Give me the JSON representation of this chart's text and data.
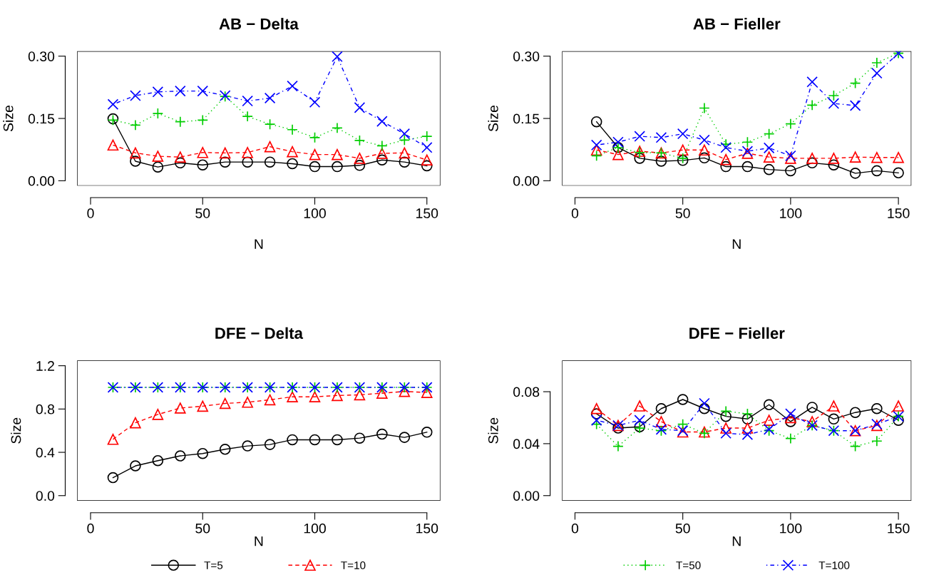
{
  "chart_data": [
    {
      "type": "line",
      "title": "AB − Delta",
      "xlabel": "N",
      "ylabel": "Size",
      "x": [
        10,
        20,
        30,
        40,
        50,
        60,
        70,
        80,
        90,
        100,
        110,
        120,
        130,
        140,
        150
      ],
      "xlim": [
        -6,
        156
      ],
      "xticks": [
        0,
        50,
        100,
        150
      ],
      "ylim": [
        -0.012,
        0.312
      ],
      "yticks": [
        {
          "value": 0,
          "label": "0.00"
        },
        {
          "value": 0.15,
          "label": "0.15"
        },
        {
          "value": 0.3,
          "label": "0.30"
        }
      ],
      "grid": false,
      "legend": false,
      "series": [
        {
          "color": "#000000",
          "marker": "circle",
          "line_style": "solid",
          "values": [
            0.149,
            0.047,
            0.033,
            0.043,
            0.038,
            0.045,
            0.045,
            0.045,
            0.041,
            0.034,
            0.034,
            0.037,
            0.05,
            0.045,
            0.036
          ]
        },
        {
          "color": "#ff0000",
          "marker": "triangle",
          "line_style": "dashed",
          "values": [
            0.086,
            0.067,
            0.059,
            0.057,
            0.068,
            0.067,
            0.068,
            0.082,
            0.07,
            0.063,
            0.063,
            0.054,
            0.066,
            0.067,
            0.05
          ]
        },
        {
          "color": "#00cd00",
          "marker": "plus",
          "line_style": "dotted",
          "values": [
            0.146,
            0.134,
            0.162,
            0.142,
            0.146,
            0.203,
            0.155,
            0.136,
            0.123,
            0.104,
            0.127,
            0.097,
            0.084,
            0.098,
            0.107
          ]
        },
        {
          "color": "#0000ff",
          "marker": "cross",
          "line_style": "dashdot",
          "values": [
            0.184,
            0.205,
            0.214,
            0.216,
            0.216,
            0.205,
            0.192,
            0.199,
            0.228,
            0.189,
            0.299,
            0.176,
            0.143,
            0.113,
            0.08
          ]
        }
      ]
    },
    {
      "type": "line",
      "title": "AB − Fieller",
      "xlabel": "N",
      "ylabel": "Size",
      "x": [
        10,
        20,
        30,
        40,
        50,
        60,
        70,
        80,
        90,
        100,
        110,
        120,
        130,
        140,
        150
      ],
      "xlim": [
        -6,
        156
      ],
      "xticks": [
        0,
        50,
        100,
        150
      ],
      "ylim": [
        -0.012,
        0.312
      ],
      "yticks": [
        {
          "value": 0,
          "label": "0.00"
        },
        {
          "value": 0.15,
          "label": "0.15"
        },
        {
          "value": 0.3,
          "label": "0.30"
        }
      ],
      "grid": false,
      "legend": false,
      "series": [
        {
          "color": "#000000",
          "marker": "circle",
          "line_style": "solid",
          "values": [
            0.142,
            0.08,
            0.054,
            0.047,
            0.049,
            0.055,
            0.034,
            0.034,
            0.027,
            0.024,
            0.043,
            0.038,
            0.018,
            0.024,
            0.019
          ]
        },
        {
          "color": "#ff0000",
          "marker": "triangle",
          "line_style": "dashed",
          "values": [
            0.074,
            0.063,
            0.071,
            0.067,
            0.074,
            0.074,
            0.051,
            0.066,
            0.057,
            0.054,
            0.054,
            0.054,
            0.057,
            0.056,
            0.056
          ]
        },
        {
          "color": "#00cd00",
          "marker": "plus",
          "line_style": "dotted",
          "values": [
            0.06,
            0.08,
            0.068,
            0.067,
            0.054,
            0.175,
            0.088,
            0.093,
            0.113,
            0.137,
            0.182,
            0.205,
            0.235,
            0.284,
            0.307
          ]
        },
        {
          "color": "#0000ff",
          "marker": "cross",
          "line_style": "dashdot",
          "values": [
            0.086,
            0.093,
            0.107,
            0.104,
            0.113,
            0.098,
            0.08,
            0.071,
            0.079,
            0.06,
            0.238,
            0.186,
            0.181,
            0.259,
            0.307
          ]
        }
      ]
    },
    {
      "type": "line",
      "title": "DFE − Delta",
      "xlabel": "N",
      "ylabel": "Size",
      "x": [
        10,
        20,
        30,
        40,
        50,
        60,
        70,
        80,
        90,
        100,
        110,
        120,
        130,
        140,
        150
      ],
      "xlim": [
        -6,
        156
      ],
      "xticks": [
        0,
        50,
        100,
        150
      ],
      "ylim": [
        -0.048,
        1.248
      ],
      "yticks": [
        {
          "value": 0,
          "label": "0.0"
        },
        {
          "value": 0.4,
          "label": "0.4"
        },
        {
          "value": 0.8,
          "label": "0.8"
        },
        {
          "value": 1.2,
          "label": "1.2"
        }
      ],
      "grid": false,
      "legend": "bottom",
      "series": [
        {
          "name": "T=5",
          "color": "#000000",
          "marker": "circle",
          "line_style": "solid",
          "values": [
            0.166,
            0.275,
            0.323,
            0.367,
            0.389,
            0.428,
            0.459,
            0.472,
            0.516,
            0.516,
            0.516,
            0.531,
            0.568,
            0.538,
            0.586
          ]
        },
        {
          "name": "T=10",
          "color": "#ff0000",
          "marker": "triangle",
          "line_style": "dashed",
          "values": [
            0.52,
            0.673,
            0.75,
            0.809,
            0.826,
            0.852,
            0.863,
            0.885,
            0.913,
            0.913,
            0.925,
            0.931,
            0.946,
            0.962,
            0.953
          ]
        },
        {
          "color": "#00cd00",
          "marker": "plus",
          "line_style": "dotted",
          "values": [
            1,
            1,
            1,
            1,
            1,
            1,
            1,
            1,
            1,
            1,
            1,
            1,
            1,
            1,
            1
          ]
        },
        {
          "color": "#0000ff",
          "marker": "cross",
          "line_style": "dashdot",
          "values": [
            1,
            1,
            1,
            1,
            1,
            1,
            1,
            1,
            1,
            1,
            1,
            1,
            1,
            1,
            1
          ]
        }
      ]
    },
    {
      "type": "line",
      "title": "DFE − Fieller",
      "xlabel": "N",
      "ylabel": "Size",
      "x": [
        10,
        20,
        30,
        40,
        50,
        60,
        70,
        80,
        90,
        100,
        110,
        120,
        130,
        140,
        150
      ],
      "xlim": [
        -6,
        156
      ],
      "xticks": [
        0,
        50,
        100,
        150
      ],
      "ylim": [
        -0.004,
        0.104
      ],
      "yticks": [
        {
          "value": 0,
          "label": "0.00"
        },
        {
          "value": 0.04,
          "label": "0.04"
        },
        {
          "value": 0.08,
          "label": "0.08"
        }
      ],
      "grid": false,
      "legend": "bottom",
      "series": [
        {
          "color": "#000000",
          "marker": "circle",
          "line_style": "solid",
          "values": [
            0.063,
            0.052,
            0.053,
            0.067,
            0.074,
            0.067,
            0.061,
            0.059,
            0.07,
            0.057,
            0.068,
            0.059,
            0.064,
            0.067,
            0.058
          ]
        },
        {
          "color": "#ff0000",
          "marker": "triangle",
          "line_style": "dashed",
          "values": [
            0.067,
            0.054,
            0.069,
            0.057,
            0.049,
            0.049,
            0.052,
            0.052,
            0.058,
            0.06,
            0.057,
            0.069,
            0.05,
            0.054,
            0.069
          ]
        },
        {
          "name": "T=50",
          "color": "#00cd00",
          "marker": "plus",
          "line_style": "dotted",
          "values": [
            0.055,
            0.038,
            0.052,
            0.05,
            0.055,
            0.048,
            0.065,
            0.063,
            0.05,
            0.044,
            0.054,
            0.05,
            0.038,
            0.042,
            0.061
          ]
        },
        {
          "name": "T=100",
          "color": "#0000ff",
          "marker": "cross",
          "line_style": "dashdot",
          "values": [
            0.058,
            0.054,
            0.058,
            0.051,
            0.05,
            0.071,
            0.048,
            0.047,
            0.051,
            0.063,
            0.054,
            0.05,
            0.05,
            0.055,
            0.061
          ]
        }
      ]
    }
  ]
}
